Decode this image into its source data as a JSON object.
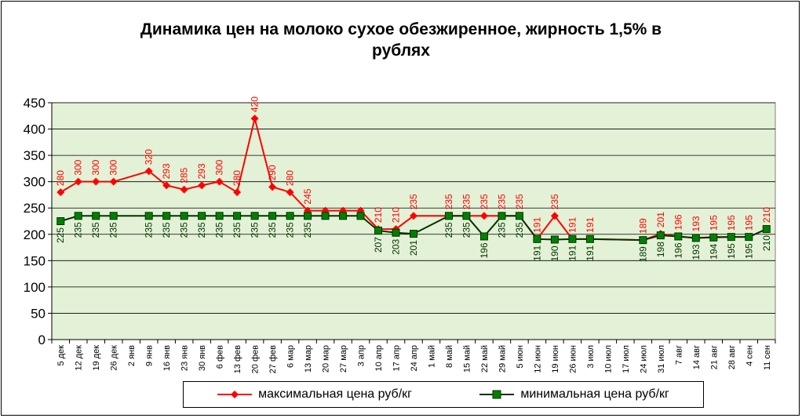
{
  "chart_data": {
    "type": "line",
    "title": "Динамика цен на молоко сухое обезжиренное, жирность 1,5%  в рублях",
    "title_lines": [
      "Динамика цен на молоко сухое обезжиренное, жирность 1,5%  в",
      "рублях"
    ],
    "xlabel": "",
    "ylabel": "",
    "ylim": [
      0,
      450
    ],
    "yticks": [
      0,
      50,
      100,
      150,
      200,
      250,
      300,
      350,
      400,
      450
    ],
    "grid": true,
    "legend_position": "bottom",
    "categories": [
      "5 дек",
      "12 дек",
      "19 дек",
      "26 дек",
      "2 янв",
      "9 янв",
      "16 янв",
      "23 янв",
      "30 янв",
      "6 фев",
      "13 фев",
      "20 фев",
      "27 фев",
      "6 мар",
      "13 мар",
      "20 мар",
      "27 мар",
      "3 апр",
      "10 апр",
      "17 апр",
      "24 апр",
      "1 май",
      "8 май",
      "15 май",
      "22 май",
      "29 май",
      "5 июн",
      "12 июн",
      "19 июн",
      "26 июн",
      "3 июл",
      "10 июл",
      "17 июл",
      "24 июл",
      "31 июл",
      "7 авг",
      "14 авг",
      "21 авг",
      "28 авг",
      "4 сен",
      "11 сен"
    ],
    "series": [
      {
        "name": "максимальная цена руб/кг",
        "color": "#ff0000",
        "marker": "diamond",
        "values": [
          280,
          300,
          300,
          300,
          null,
          320,
          293,
          285,
          293,
          300,
          280,
          420,
          290,
          280,
          245,
          245,
          245,
          245,
          210,
          210,
          235,
          null,
          235,
          235,
          235,
          235,
          235,
          191,
          235,
          191,
          191,
          null,
          null,
          189,
          201,
          196,
          193,
          195,
          195,
          195,
          210
        ],
        "labels": [
          "280",
          "300",
          "300",
          "300",
          "",
          "320",
          "293",
          "285",
          "293",
          "300",
          "280",
          "420",
          "290",
          "280",
          "245",
          "",
          "",
          "",
          "210",
          "210",
          "235",
          "",
          "235",
          "235",
          "235",
          "235",
          "235",
          "191",
          "235",
          "191",
          "191",
          "",
          "",
          "189",
          "201",
          "196",
          "193",
          "195",
          "195",
          "195",
          "210"
        ]
      },
      {
        "name": "минимальная цена руб/кг",
        "color": "#003300",
        "marker": "square",
        "values": [
          225,
          235,
          235,
          235,
          null,
          235,
          235,
          235,
          235,
          235,
          235,
          235,
          235,
          235,
          235,
          235,
          235,
          235,
          207,
          203,
          201,
          null,
          235,
          235,
          196,
          235,
          235,
          191,
          190,
          191,
          191,
          null,
          null,
          189,
          198,
          196,
          193,
          194,
          195,
          195,
          210
        ],
        "labels": [
          "225",
          "235",
          "235",
          "235",
          "",
          "235",
          "235",
          "235",
          "235",
          "235",
          "235",
          "235",
          "235",
          "235",
          "235",
          "",
          "",
          "",
          "207",
          "203",
          "201",
          "",
          "235",
          "235",
          "196",
          "235",
          "235",
          "191",
          "190",
          "191",
          "191",
          "",
          "",
          "189",
          "198",
          "196",
          "193",
          "194",
          "195",
          "195",
          "210"
        ]
      }
    ]
  }
}
